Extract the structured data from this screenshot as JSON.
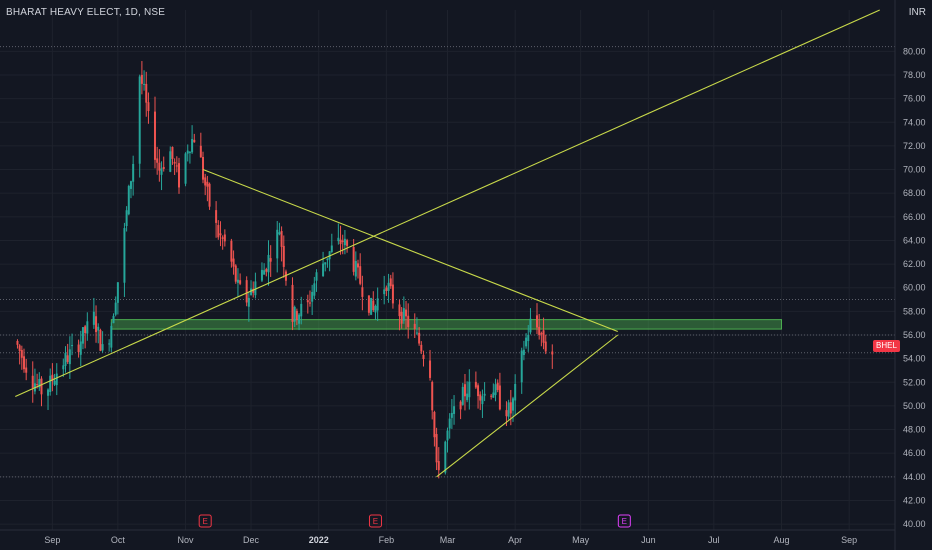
{
  "header": {
    "title": "BHARAT HEAVY ELECT, 1D, NSE",
    "currency": "INR"
  },
  "price_badge": "BHEL",
  "colors": {
    "bg": "#131722",
    "up": "#26a69a",
    "down": "#ef5350",
    "trendline": "#c8d94a",
    "zone": "#4caf50",
    "event_red": "#f23645",
    "event_purple": "#e040fb"
  },
  "chart_data": {
    "type": "candlestick",
    "title": "BHARAT HEAVY ELECT, 1D, NSE",
    "ylim": [
      39.5,
      83.5
    ],
    "y_ticks": [
      "40.00",
      "42.00",
      "44.00",
      "46.00",
      "48.00",
      "50.00",
      "52.00",
      "54.00",
      "56.00",
      "58.00",
      "60.00",
      "62.00",
      "64.00",
      "66.00",
      "68.00",
      "70.00",
      "72.00",
      "74.00",
      "76.00",
      "78.00",
      "80.00"
    ],
    "x_ticks": [
      {
        "label": "Sep",
        "date": "2021-09-01"
      },
      {
        "label": "Oct",
        "date": "2021-10-01"
      },
      {
        "label": "Nov",
        "date": "2021-11-01"
      },
      {
        "label": "Dec",
        "date": "2021-12-01"
      },
      {
        "label": "2022",
        "date": "2022-01-01",
        "bold": true
      },
      {
        "label": "Feb",
        "date": "2022-02-01"
      },
      {
        "label": "Mar",
        "date": "2022-03-01"
      },
      {
        "label": "Apr",
        "date": "2022-04-01"
      },
      {
        "label": "May",
        "date": "2022-05-01"
      },
      {
        "label": "Jun",
        "date": "2022-06-01"
      },
      {
        "label": "Jul",
        "date": "2022-07-01"
      },
      {
        "label": "Aug",
        "date": "2022-08-01"
      },
      {
        "label": "Sep",
        "date": "2022-09-01"
      }
    ],
    "price_anchors": [
      [
        "2021-08-15",
        55.5
      ],
      [
        "2021-08-22",
        52.5
      ],
      [
        "2021-08-28",
        51.0
      ],
      [
        "2021-09-05",
        53.5
      ],
      [
        "2021-09-12",
        55.0
      ],
      [
        "2021-09-20",
        57.5
      ],
      [
        "2021-09-25",
        54.0
      ],
      [
        "2021-09-28",
        57.0
      ],
      [
        "2021-10-03",
        63.0
      ],
      [
        "2021-10-06",
        68.0
      ],
      [
        "2021-10-09",
        72.0
      ],
      [
        "2021-10-11",
        78.0
      ],
      [
        "2021-10-13",
        76.5
      ],
      [
        "2021-10-16",
        73.0
      ],
      [
        "2021-10-20",
        70.0
      ],
      [
        "2021-10-25",
        71.5
      ],
      [
        "2021-10-29",
        69.0
      ],
      [
        "2021-11-02",
        72.0
      ],
      [
        "2021-11-06",
        73.0
      ],
      [
        "2021-11-09",
        69.5
      ],
      [
        "2021-11-12",
        67.0
      ],
      [
        "2021-11-16",
        64.5
      ],
      [
        "2021-11-20",
        63.5
      ],
      [
        "2021-11-25",
        60.0
      ],
      [
        "2021-11-29",
        59.0
      ],
      [
        "2021-12-03",
        60.5
      ],
      [
        "2021-12-07",
        61.5
      ],
      [
        "2021-12-11",
        63.5
      ],
      [
        "2021-12-14",
        65.0
      ],
      [
        "2021-12-17",
        61.0
      ],
      [
        "2021-12-20",
        57.5
      ],
      [
        "2021-12-23",
        58.0
      ],
      [
        "2021-12-27",
        58.5
      ],
      [
        "2021-12-31",
        61.0
      ],
      [
        "2022-01-04",
        62.5
      ],
      [
        "2022-01-08",
        63.5
      ],
      [
        "2022-01-12",
        64.0
      ],
      [
        "2022-01-15",
        63.0
      ],
      [
        "2022-01-19",
        61.0
      ],
      [
        "2022-01-23",
        59.0
      ],
      [
        "2022-01-26",
        58.0
      ],
      [
        "2022-01-29",
        59.5
      ],
      [
        "2022-02-01",
        60.5
      ],
      [
        "2022-02-05",
        58.5
      ],
      [
        "2022-02-09",
        57.5
      ],
      [
        "2022-02-13",
        56.5
      ],
      [
        "2022-02-17",
        55.0
      ],
      [
        "2022-02-21",
        53.0
      ],
      [
        "2022-02-24",
        44.5
      ],
      [
        "2022-02-28",
        47.0
      ],
      [
        "2022-03-03",
        49.0
      ],
      [
        "2022-03-07",
        50.5
      ],
      [
        "2022-03-10",
        51.5
      ],
      [
        "2022-03-14",
        51.5
      ],
      [
        "2022-03-18",
        51.0
      ],
      [
        "2022-03-22",
        51.5
      ],
      [
        "2022-03-26",
        50.0
      ],
      [
        "2022-03-30",
        49.5
      ],
      [
        "2022-04-02",
        52.0
      ],
      [
        "2022-04-05",
        55.0
      ],
      [
        "2022-04-08",
        57.0
      ],
      [
        "2022-04-12",
        56.5
      ],
      [
        "2022-04-15",
        55.0
      ],
      [
        "2022-04-18",
        54.5
      ]
    ],
    "lines": [
      {
        "name": "rising-trendline",
        "from": [
          "2021-08-15",
          50.8
        ],
        "to": [
          "2022-09-15",
          83.5
        ]
      },
      {
        "name": "falling-trendline",
        "from": [
          "2021-11-09",
          70.0
        ],
        "to": [
          "2022-05-18",
          56.3
        ]
      },
      {
        "name": "support-trendline",
        "from": [
          "2022-02-24",
          44.0
        ],
        "to": [
          "2022-05-18",
          56.0
        ]
      }
    ],
    "zone": {
      "from": "2021-09-28",
      "to": "2022-08-01",
      "low": 56.5,
      "high": 57.3
    },
    "hlines": [
      80.4,
      59.0,
      56.0,
      54.5,
      44.0
    ],
    "events": [
      {
        "date": "2021-11-10",
        "label": "E",
        "kind": "earnings"
      },
      {
        "date": "2022-01-27",
        "label": "E",
        "kind": "earnings"
      },
      {
        "date": "2022-05-21",
        "label": "E",
        "kind": "earnings-upcoming"
      }
    ]
  }
}
